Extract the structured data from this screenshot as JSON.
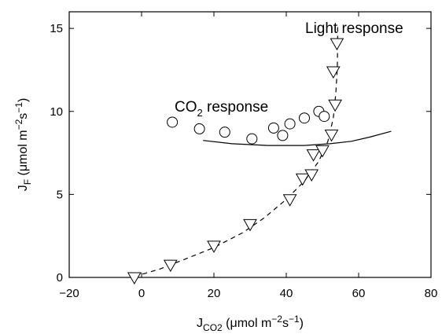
{
  "chart_data": {
    "type": "scatter",
    "xlabel": {
      "main": "J",
      "sub": "CO2",
      "rest": " (μmol m",
      "sup": "−2",
      "tail": "s",
      "sup2": "−1",
      "close": ")"
    },
    "ylabel": {
      "main": "J",
      "sub": "F",
      "rest": " (μmol m",
      "sup": "−2",
      "tail": "s",
      "sup2": "−1",
      "close": ")"
    },
    "xlim": [
      -20,
      80
    ],
    "ylim": [
      0,
      16
    ],
    "xticks": [
      -20,
      0,
      20,
      40,
      60,
      80
    ],
    "yticks": [
      0,
      5,
      10,
      15
    ],
    "xtick_labels": [
      "−20",
      "0",
      "20",
      "40",
      "60",
      "80"
    ],
    "ytick_labels": [
      "0",
      "5",
      "10",
      "15"
    ],
    "grid": false,
    "annotations": {
      "light": "Light response",
      "co2_main": "CO",
      "co2_sub": "2",
      "co2_rest": " response"
    },
    "series": [
      {
        "marker": "circle",
        "points": [
          [
            8.5,
            9.35
          ],
          [
            16,
            8.95
          ],
          [
            23,
            8.75
          ],
          [
            30.5,
            8.35
          ],
          [
            36.5,
            9.0
          ],
          [
            39,
            8.55
          ],
          [
            41,
            9.25
          ],
          [
            45,
            9.6
          ],
          [
            49,
            10.0
          ],
          [
            50.5,
            9.7
          ]
        ]
      },
      {
        "marker": "triangle-down",
        "points": [
          [
            -2,
            0.0
          ],
          [
            8,
            0.75
          ],
          [
            20,
            1.9
          ],
          [
            30,
            3.2
          ],
          [
            41,
            4.7
          ],
          [
            44.5,
            5.95
          ],
          [
            47,
            6.2
          ],
          [
            47.5,
            7.4
          ],
          [
            50,
            7.65
          ],
          [
            52.5,
            8.6
          ],
          [
            53.5,
            10.4
          ],
          [
            53,
            12.4
          ],
          [
            54,
            14.1
          ]
        ]
      },
      {
        "line": "solid",
        "points": [
          [
            17,
            8.25
          ],
          [
            25,
            8.05
          ],
          [
            35,
            7.95
          ],
          [
            45,
            7.95
          ],
          [
            52,
            8.05
          ],
          [
            58,
            8.2
          ],
          [
            63,
            8.45
          ],
          [
            69,
            8.8
          ]
        ]
      },
      {
        "line": "dashed",
        "points": [
          [
            -2,
            0.05
          ],
          [
            5,
            0.5
          ],
          [
            12,
            1.1
          ],
          [
            20,
            1.8
          ],
          [
            28,
            2.7
          ],
          [
            34,
            3.6
          ],
          [
            40,
            4.7
          ],
          [
            45,
            5.8
          ],
          [
            49,
            7.0
          ],
          [
            51.5,
            8.2
          ],
          [
            53,
            9.6
          ],
          [
            53.7,
            11.1
          ],
          [
            54.1,
            12.6
          ],
          [
            54.2,
            14.1
          ],
          [
            54.2,
            15.2
          ]
        ]
      }
    ]
  }
}
